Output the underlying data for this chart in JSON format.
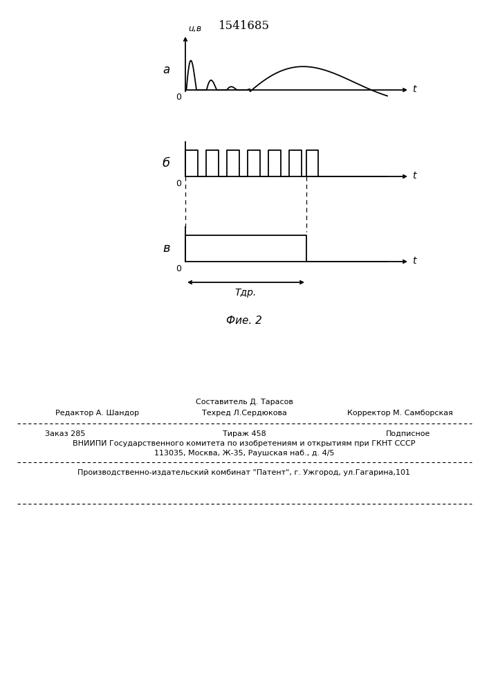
{
  "title": "1541685",
  "fig_caption": "Фие. 2",
  "label_a": "а",
  "label_b": "б",
  "label_v": "в",
  "label_0": "0",
  "label_t": "t",
  "label_uv": "u,в",
  "label_tdr": "Tдр.",
  "bg_color": "#ffffff",
  "line_color": "#000000"
}
